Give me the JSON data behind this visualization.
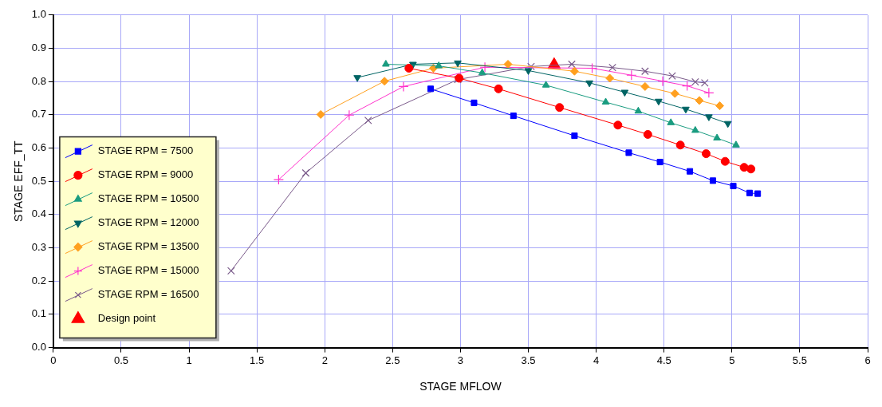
{
  "chart_data": {
    "type": "line",
    "xlabel": "STAGE MFLOW",
    "ylabel": "STAGE EFF_TT",
    "xlim": [
      0,
      6
    ],
    "xticks": [
      0,
      0.5,
      1,
      1.5,
      2,
      2.5,
      3,
      3.5,
      4,
      4.5,
      5,
      5.5,
      6
    ],
    "ylim": [
      0,
      1
    ],
    "yticks": [
      {
        "value": 0,
        "label": "0.0"
      },
      {
        "value": 0.1,
        "label": "0.1"
      },
      {
        "value": 0.2,
        "label": "0.2"
      },
      {
        "value": 0.3,
        "label": "0.3"
      },
      {
        "value": 0.4,
        "label": "0.4"
      },
      {
        "value": 0.5,
        "label": "0.5"
      },
      {
        "value": 0.6,
        "label": "0.6"
      },
      {
        "value": 0.7,
        "label": "0.7"
      },
      {
        "value": 0.8,
        "label": "0.8"
      },
      {
        "value": 0.9,
        "label": "0.9"
      },
      {
        "value": 1,
        "label": "1.0"
      }
    ],
    "grid": true,
    "legend": "bottom left",
    "line_style": "solid",
    "series": [
      {
        "name": "STAGE RPM = 7500",
        "color": "#0000ff",
        "marker": "square",
        "x": [
          2.78,
          3.1,
          3.39,
          3.84,
          4.24,
          4.47,
          4.69,
          4.86,
          5.01,
          5.13,
          5.19
        ],
        "values": [
          0.778,
          0.736,
          0.697,
          0.637,
          0.586,
          0.558,
          0.53,
          0.502,
          0.486,
          0.465,
          0.463
        ]
      },
      {
        "name": "STAGE RPM = 9000",
        "color": "#ff0000",
        "marker": "circle",
        "x": [
          2.62,
          2.99,
          3.28,
          3.73,
          4.16,
          4.38,
          4.62,
          4.81,
          4.95,
          5.09,
          5.14
        ],
        "values": [
          0.84,
          0.81,
          0.778,
          0.722,
          0.669,
          0.641,
          0.609,
          0.583,
          0.56,
          0.542,
          0.537
        ]
      },
      {
        "name": "STAGE RPM = 10500",
        "color": "#1a9c80",
        "marker": "triangle",
        "x": [
          2.45,
          2.84,
          3.16,
          3.63,
          4.07,
          4.31,
          4.55,
          4.73,
          4.89,
          5.03
        ],
        "values": [
          0.852,
          0.847,
          0.826,
          0.789,
          0.738,
          0.711,
          0.676,
          0.653,
          0.63,
          0.609
        ]
      },
      {
        "name": "STAGE RPM = 12000",
        "color": "#006464",
        "marker": "triangle-down",
        "x": [
          2.24,
          2.65,
          2.98,
          3.5,
          3.95,
          4.21,
          4.46,
          4.66,
          4.83,
          4.97
        ],
        "values": [
          0.812,
          0.852,
          0.856,
          0.833,
          0.796,
          0.768,
          0.741,
          0.717,
          0.694,
          0.674
        ]
      },
      {
        "name": "STAGE RPM = 13500",
        "color": "#ffa020",
        "marker": "diamond",
        "x": [
          1.97,
          2.44,
          2.8,
          3.35,
          3.84,
          4.1,
          4.36,
          4.58,
          4.76,
          4.91
        ],
        "values": [
          0.701,
          0.801,
          0.84,
          0.852,
          0.831,
          0.81,
          0.785,
          0.764,
          0.743,
          0.727
        ]
      },
      {
        "name": "STAGE RPM = 15000",
        "color": "#ff33cc",
        "marker": "cross",
        "x": [
          1.66,
          2.18,
          2.58,
          3.18,
          3.97,
          4.26,
          4.49,
          4.67,
          4.83
        ],
        "values": [
          0.505,
          0.699,
          0.785,
          0.843,
          0.84,
          0.819,
          0.801,
          0.787,
          0.766
        ]
      },
      {
        "name": "STAGE RPM = 16500",
        "color": "#7a5a8a",
        "marker": "x",
        "x": [
          1.31,
          1.86,
          2.32,
          2.98,
          3.52,
          3.82,
          4.12,
          4.36,
          4.56,
          4.73,
          4.8
        ],
        "values": [
          0.231,
          0.525,
          0.683,
          0.806,
          0.845,
          0.852,
          0.842,
          0.831,
          0.817,
          0.799,
          0.796
        ]
      },
      {
        "name": "Design point",
        "type": "scatter",
        "color": "#ff0000",
        "marker": "triangle",
        "x": [
          3.69
        ],
        "values": [
          0.85
        ]
      }
    ]
  }
}
